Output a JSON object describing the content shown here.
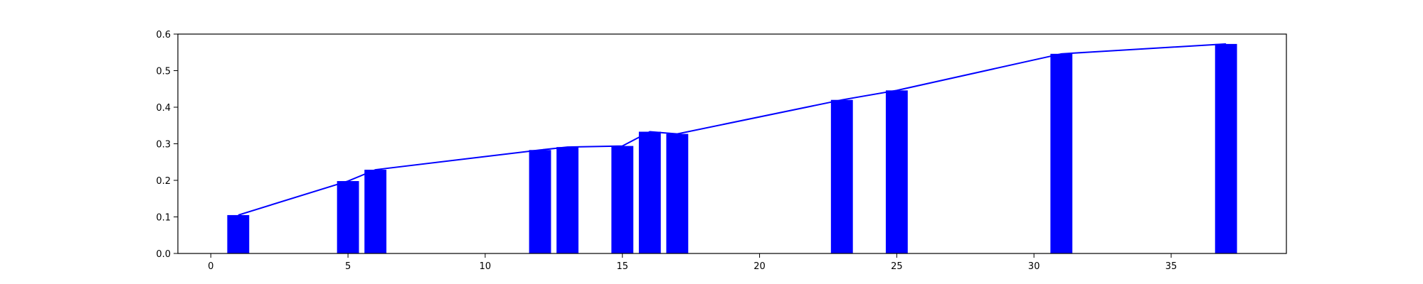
{
  "chart_data": {
    "type": "bar",
    "title": "",
    "xlabel": "",
    "ylabel": "",
    "xlim": [
      -1.2,
      39.2
    ],
    "ylim": [
      0,
      0.6
    ],
    "grid": false,
    "bar_width": 0.8,
    "bar_color": "#0000ff",
    "line_color": "#0000ff",
    "x_ticks": [
      0,
      5,
      10,
      15,
      20,
      25,
      30,
      35
    ],
    "y_ticks": [
      0.0,
      0.1,
      0.2,
      0.3,
      0.4,
      0.5,
      0.6
    ],
    "x_tick_labels": [
      "0",
      "5",
      "10",
      "15",
      "20",
      "25",
      "30",
      "35"
    ],
    "y_tick_labels": [
      "0.0",
      "0.1",
      "0.2",
      "0.3",
      "0.4",
      "0.5",
      "0.6"
    ],
    "series": [
      {
        "type": "bar",
        "x": [
          1,
          5,
          6,
          12,
          13,
          15,
          16,
          17,
          23,
          25,
          31,
          37
        ],
        "values": [
          0.105,
          0.198,
          0.229,
          0.283,
          0.291,
          0.294,
          0.333,
          0.327,
          0.42,
          0.446,
          0.546,
          0.573
        ]
      },
      {
        "type": "line",
        "x": [
          1,
          5,
          6,
          12,
          13,
          15,
          16,
          17,
          23,
          25,
          31,
          37
        ],
        "values": [
          0.105,
          0.198,
          0.229,
          0.283,
          0.291,
          0.294,
          0.333,
          0.327,
          0.42,
          0.446,
          0.546,
          0.573
        ]
      }
    ]
  }
}
